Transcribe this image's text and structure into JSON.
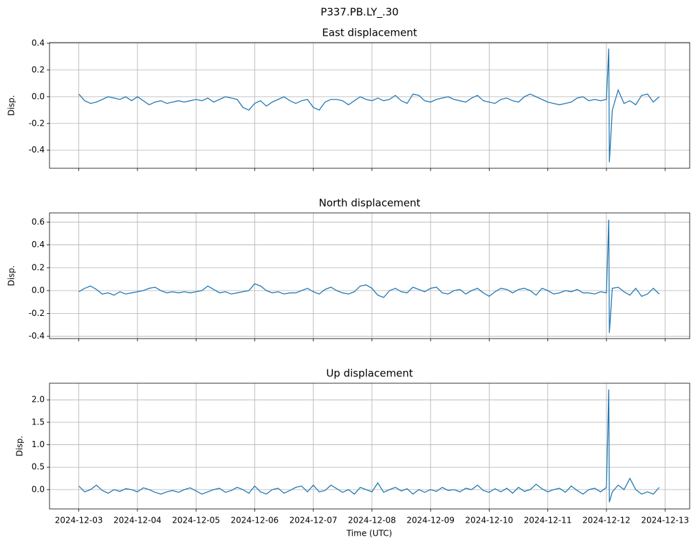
{
  "title": "P337.PB.LY_.30",
  "xlabel": "Time (UTC)",
  "xlim": [
    -0.5,
    10.42
  ],
  "xticks": [
    {
      "value": 0,
      "label": "2024-12-03"
    },
    {
      "value": 1,
      "label": "2024-12-04"
    },
    {
      "value": 2,
      "label": "2024-12-05"
    },
    {
      "value": 3,
      "label": "2024-12-06"
    },
    {
      "value": 4,
      "label": "2024-12-07"
    },
    {
      "value": 5,
      "label": "2024-12-08"
    },
    {
      "value": 6,
      "label": "2024-12-09"
    },
    {
      "value": 7,
      "label": "2024-12-10"
    },
    {
      "value": 8,
      "label": "2024-12-11"
    },
    {
      "value": 9,
      "label": "2024-12-12"
    },
    {
      "value": 10,
      "label": "2024-12-13"
    }
  ],
  "x": [
    0,
    0.1,
    0.2,
    0.3,
    0.4,
    0.5,
    0.6,
    0.7,
    0.8,
    0.9,
    1,
    1.1,
    1.2,
    1.3,
    1.4,
    1.5,
    1.6,
    1.7,
    1.8,
    1.9,
    2,
    2.1,
    2.2,
    2.3,
    2.4,
    2.5,
    2.6,
    2.7,
    2.8,
    2.9,
    3,
    3.1,
    3.2,
    3.3,
    3.4,
    3.5,
    3.6,
    3.7,
    3.8,
    3.9,
    4,
    4.1,
    4.2,
    4.3,
    4.4,
    4.5,
    4.6,
    4.7,
    4.8,
    4.9,
    5,
    5.1,
    5.2,
    5.3,
    5.4,
    5.5,
    5.6,
    5.7,
    5.8,
    5.9,
    6,
    6.1,
    6.2,
    6.3,
    6.4,
    6.5,
    6.6,
    6.7,
    6.8,
    6.9,
    7,
    7.1,
    7.2,
    7.3,
    7.4,
    7.5,
    7.6,
    7.7,
    7.8,
    7.9,
    8,
    8.1,
    8.2,
    8.3,
    8.4,
    8.5,
    8.6,
    8.7,
    8.8,
    8.9,
    9,
    9.04,
    9.05,
    9.1,
    9.2,
    9.3,
    9.4,
    9.5,
    9.6,
    9.7,
    9.8,
    9.9
  ],
  "chart_data": [
    {
      "type": "line",
      "title": "East displacement",
      "ylabel": "Disp.",
      "color": "#1f77b4",
      "grid": true,
      "ylim": [
        -0.535,
        0.405
      ],
      "yticks": [
        -0.4,
        -0.2,
        {
          "value": 0,
          "label": "0.0"
        },
        0.2,
        0.4
      ],
      "values": [
        0.02,
        -0.03,
        -0.05,
        -0.04,
        -0.02,
        0.0,
        -0.01,
        -0.02,
        0.0,
        -0.03,
        0.0,
        -0.03,
        -0.06,
        -0.04,
        -0.03,
        -0.05,
        -0.04,
        -0.03,
        -0.04,
        -0.03,
        -0.02,
        -0.03,
        -0.01,
        -0.04,
        -0.02,
        0.0,
        -0.01,
        -0.02,
        -0.08,
        -0.1,
        -0.05,
        -0.03,
        -0.07,
        -0.04,
        -0.02,
        0.0,
        -0.03,
        -0.05,
        -0.03,
        -0.02,
        -0.08,
        -0.1,
        -0.04,
        -0.02,
        -0.02,
        -0.03,
        -0.06,
        -0.03,
        0.0,
        -0.02,
        -0.03,
        -0.01,
        -0.03,
        -0.02,
        0.01,
        -0.03,
        -0.05,
        0.02,
        0.01,
        -0.03,
        -0.04,
        -0.02,
        -0.01,
        0.0,
        -0.02,
        -0.03,
        -0.04,
        -0.01,
        0.01,
        -0.03,
        -0.04,
        -0.05,
        -0.02,
        -0.01,
        -0.03,
        -0.04,
        0.0,
        0.02,
        0.0,
        -0.02,
        -0.04,
        -0.05,
        -0.06,
        -0.05,
        -0.04,
        -0.01,
        0.0,
        -0.03,
        -0.02,
        -0.03,
        -0.02,
        0.36,
        -0.49,
        -0.1,
        0.05,
        -0.05,
        -0.03,
        -0.06,
        0.01,
        0.02,
        -0.04,
        0.0
      ]
    },
    {
      "type": "line",
      "title": "North displacement",
      "ylabel": "Disp.",
      "color": "#1f77b4",
      "grid": true,
      "ylim": [
        -0.42,
        0.68
      ],
      "yticks": [
        -0.4,
        -0.2,
        {
          "value": 0,
          "label": "0.0"
        },
        0.2,
        0.4,
        0.6
      ],
      "values": [
        -0.01,
        0.02,
        0.04,
        0.01,
        -0.03,
        -0.02,
        -0.04,
        -0.01,
        -0.03,
        -0.02,
        -0.01,
        0.0,
        0.02,
        0.03,
        0.0,
        -0.02,
        -0.01,
        -0.02,
        -0.01,
        -0.02,
        -0.01,
        0.0,
        0.04,
        0.01,
        -0.02,
        -0.01,
        -0.03,
        -0.02,
        -0.01,
        0.0,
        0.06,
        0.04,
        0.0,
        -0.02,
        -0.01,
        -0.03,
        -0.02,
        -0.02,
        0.0,
        0.02,
        -0.01,
        -0.03,
        0.01,
        0.03,
        0.0,
        -0.02,
        -0.03,
        -0.01,
        0.04,
        0.05,
        0.02,
        -0.04,
        -0.06,
        0.0,
        0.02,
        -0.01,
        -0.02,
        0.03,
        0.01,
        -0.01,
        0.02,
        0.03,
        -0.02,
        -0.03,
        0.0,
        0.01,
        -0.03,
        0.0,
        0.02,
        -0.02,
        -0.05,
        -0.01,
        0.02,
        0.01,
        -0.02,
        0.01,
        0.02,
        0.0,
        -0.04,
        0.02,
        0.0,
        -0.03,
        -0.02,
        0.0,
        -0.01,
        0.01,
        -0.02,
        -0.02,
        -0.03,
        -0.01,
        -0.02,
        0.62,
        -0.37,
        0.02,
        0.03,
        -0.01,
        -0.04,
        0.02,
        -0.05,
        -0.03,
        0.02,
        -0.03
      ]
    },
    {
      "type": "line",
      "title": "Up displacement",
      "ylabel": "Disp.",
      "color": "#1f77b4",
      "grid": true,
      "ylim": [
        -0.43,
        2.37
      ],
      "yticks": [
        {
          "value": 0,
          "label": "0.0"
        },
        0.5,
        {
          "value": 1,
          "label": "1.0"
        },
        1.5,
        {
          "value": 2,
          "label": "2.0"
        }
      ],
      "values": [
        0.08,
        -0.05,
        0.0,
        0.1,
        -0.02,
        -0.08,
        0.0,
        -0.04,
        0.02,
        0.0,
        -0.05,
        0.04,
        0.0,
        -0.06,
        -0.1,
        -0.05,
        -0.02,
        -0.06,
        0.0,
        0.04,
        -0.03,
        -0.1,
        -0.05,
        0.0,
        0.03,
        -0.06,
        -0.02,
        0.05,
        0.0,
        -0.08,
        0.08,
        -0.05,
        -0.1,
        0.0,
        0.03,
        -0.08,
        -0.02,
        0.05,
        0.08,
        -0.05,
        0.1,
        -0.05,
        -0.02,
        0.1,
        0.02,
        -0.06,
        0.0,
        -0.1,
        0.05,
        0.0,
        -0.05,
        0.15,
        -0.06,
        0.0,
        0.05,
        -0.03,
        0.02,
        -0.1,
        0.0,
        -0.06,
        0.0,
        -0.04,
        0.05,
        -0.02,
        0.0,
        -0.05,
        0.03,
        0.0,
        0.1,
        -0.02,
        -0.06,
        0.02,
        -0.05,
        0.03,
        -0.08,
        0.05,
        -0.04,
        0.0,
        0.12,
        0.02,
        -0.05,
        0.0,
        0.03,
        -0.06,
        0.08,
        -0.02,
        -0.1,
        0.0,
        0.03,
        -0.05,
        0.05,
        2.23,
        -0.28,
        -0.05,
        0.1,
        0.0,
        0.25,
        0.0,
        -0.1,
        -0.05,
        -0.1,
        0.05
      ]
    }
  ]
}
